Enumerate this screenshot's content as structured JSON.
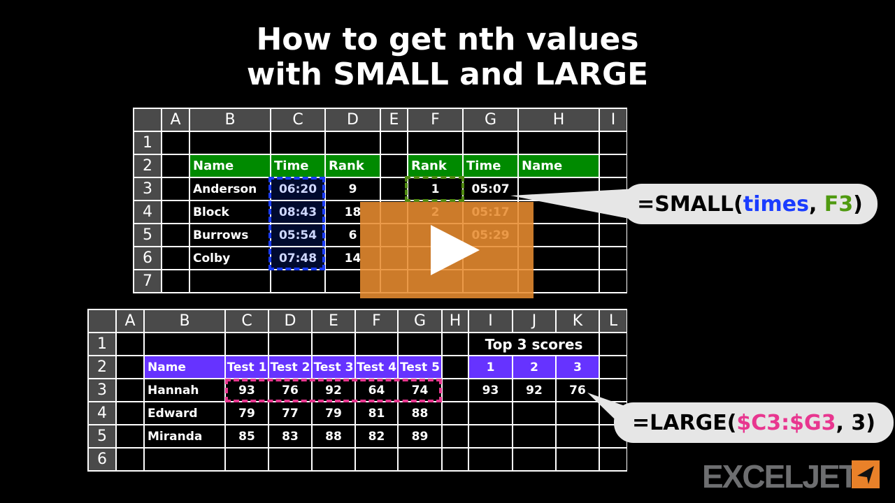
{
  "title_lines": [
    "How to get nth values",
    "with SMALL and LARGE"
  ],
  "top_table": {
    "columns": [
      "",
      "A",
      "B",
      "C",
      "D",
      "E",
      "F",
      "G",
      "H",
      "I"
    ],
    "rows": [
      [
        "1",
        "",
        "",
        "",
        "",
        "",
        "",
        "",
        "",
        ""
      ],
      [
        "2",
        "",
        "Name",
        "Time",
        "Rank",
        "",
        "Rank",
        "Time",
        "Name",
        ""
      ],
      [
        "3",
        "",
        "Anderson",
        "06:20",
        "9",
        "",
        "1",
        "05:07",
        "",
        ""
      ],
      [
        "4",
        "",
        "Block",
        "08:43",
        "18",
        "",
        "2",
        "05:17",
        "",
        ""
      ],
      [
        "5",
        "",
        "Burrows",
        "05:54",
        "6",
        "",
        "",
        "05:29",
        "",
        ""
      ],
      [
        "6",
        "",
        "Colby",
        "07:48",
        "14",
        "",
        "",
        "",
        "",
        ""
      ],
      [
        "7",
        "",
        "",
        "",
        "",
        "",
        "",
        "",
        "",
        ""
      ]
    ]
  },
  "bottom_table": {
    "columns": [
      "",
      "A",
      "B",
      "C",
      "D",
      "E",
      "F",
      "G",
      "H",
      "I",
      "J",
      "K",
      "L"
    ],
    "rows": [
      [
        "1",
        "",
        "",
        "",
        "",
        "",
        "",
        "",
        "",
        "Top 3 scores",
        "",
        "",
        ""
      ],
      [
        "2",
        "",
        "Name",
        "Test 1",
        "Test 2",
        "Test 3",
        "Test 4",
        "Test 5",
        "",
        "1",
        "2",
        "3",
        ""
      ],
      [
        "3",
        "",
        "Hannah",
        "93",
        "76",
        "92",
        "64",
        "74",
        "",
        "93",
        "92",
        "76",
        ""
      ],
      [
        "4",
        "",
        "Edward",
        "79",
        "77",
        "79",
        "81",
        "88",
        "",
        "",
        "",
        "",
        ""
      ],
      [
        "5",
        "",
        "Miranda",
        "85",
        "83",
        "88",
        "82",
        "89",
        "",
        "",
        "",
        "",
        ""
      ],
      [
        "6",
        "",
        "",
        "",
        "",
        "",
        "",
        "",
        "",
        "",
        "",
        "",
        ""
      ]
    ]
  },
  "callout_small": {
    "prefix": "=SMALL(",
    "arg1": "times",
    "sep": ", ",
    "arg2": "F3",
    "suffix": ")"
  },
  "callout_large": {
    "prefix": "=LARGE(",
    "arg1": "$C3:$G3",
    "suffix": ", 3)"
  },
  "video": {
    "play_icon": "play-icon"
  },
  "logo": {
    "text": "EXCELJET"
  },
  "colors": {
    "green_header": "#008a00",
    "purple_header": "#6633ff",
    "blue_arg": "#1a3cff",
    "green_arg": "#4f9a10",
    "pink_arg": "#e8368f",
    "overlay": "#e88c30"
  }
}
